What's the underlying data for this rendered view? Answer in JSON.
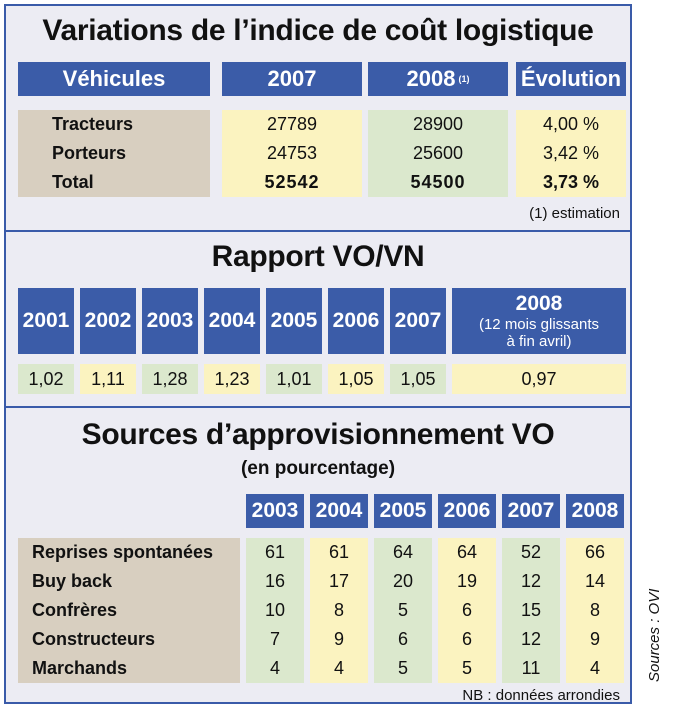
{
  "section1": {
    "title": "Variations de l’indice de coût logistique",
    "headers": {
      "vehicules": "Véhicules",
      "y2007": "2007",
      "y2008": "2008",
      "y2008_note": "(1)",
      "evolution": "Évolution"
    },
    "rows": [
      {
        "label": "Tracteurs",
        "v2007": "27789",
        "v2008": "28900",
        "evolution": "4,00 %"
      },
      {
        "label": "Porteurs",
        "v2007": "24753",
        "v2008": "25600",
        "evolution": "3,42 %"
      },
      {
        "label": "Total",
        "v2007": "52542",
        "v2008": "54500",
        "evolution": "3,73 %"
      }
    ],
    "footnote": "(1) estimation"
  },
  "section2": {
    "title": "Rapport VO/VN",
    "years": [
      "2001",
      "2002",
      "2003",
      "2004",
      "2005",
      "2006",
      "2007"
    ],
    "values": [
      "1,02",
      "1,11",
      "1,28",
      "1,23",
      "1,01",
      "1,05",
      "1,05"
    ],
    "last_year": "2008",
    "last_year_note_1": "(12 mois glissants",
    "last_year_note_2": "à fin avril)",
    "last_value": "0,97"
  },
  "section3": {
    "title": "Sources d’approvisionnement VO",
    "subtitle": "(en pourcentage)",
    "years": [
      "2003",
      "2004",
      "2005",
      "2006",
      "2007",
      "2008"
    ],
    "rows": [
      {
        "label": "Reprises spontanées",
        "values": [
          "61",
          "61",
          "64",
          "64",
          "52",
          "66"
        ]
      },
      {
        "label": "Buy back",
        "values": [
          "16",
          "17",
          "20",
          "19",
          "12",
          "14"
        ]
      },
      {
        "label": "Confrères",
        "values": [
          "10",
          "8",
          "5",
          "6",
          "15",
          "8"
        ]
      },
      {
        "label": "Constructeurs",
        "values": [
          "7",
          "9",
          "6",
          "6",
          "12",
          "9"
        ]
      },
      {
        "label": "Marchands",
        "values": [
          "4",
          "4",
          "5",
          "5",
          "11",
          "4"
        ]
      }
    ],
    "footnote": "NB : données arrondies"
  },
  "source": "Sources : OVI",
  "colors": {
    "header": "#3b5ca8",
    "tan": "#d8cfc0",
    "yellow": "#fbf3c0",
    "green": "#dbe8cd",
    "border": "#3a5ba9"
  }
}
